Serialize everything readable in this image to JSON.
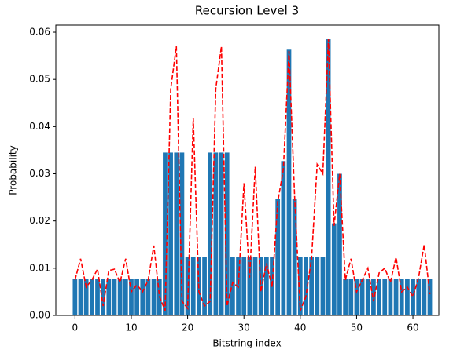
{
  "chart_data": {
    "type": "bar",
    "title": "Recursion Level 3",
    "xlabel": "Bitstring index",
    "ylabel": "Probability",
    "x": [
      0,
      1,
      2,
      3,
      4,
      5,
      6,
      7,
      8,
      9,
      10,
      11,
      12,
      13,
      14,
      15,
      16,
      17,
      18,
      19,
      20,
      21,
      22,
      23,
      24,
      25,
      26,
      27,
      28,
      29,
      30,
      31,
      32,
      33,
      34,
      35,
      36,
      37,
      38,
      39,
      40,
      41,
      42,
      43,
      44,
      45,
      46,
      47,
      48,
      49,
      50,
      51,
      52,
      53,
      54,
      55,
      56,
      57,
      58,
      59,
      60,
      61,
      62,
      63
    ],
    "series": [
      {
        "type": "bar",
        "color": "#1f77b4",
        "values": [
          0.0078,
          0.0078,
          0.0078,
          0.0078,
          0.0078,
          0.0078,
          0.0078,
          0.0078,
          0.0078,
          0.0078,
          0.0078,
          0.0078,
          0.0078,
          0.0078,
          0.0078,
          0.0078,
          0.0345,
          0.0345,
          0.0345,
          0.0345,
          0.0123,
          0.0123,
          0.0123,
          0.0123,
          0.0345,
          0.0345,
          0.0345,
          0.0345,
          0.0123,
          0.0123,
          0.0123,
          0.0123,
          0.0123,
          0.0123,
          0.0123,
          0.0123,
          0.0247,
          0.0327,
          0.0563,
          0.0247,
          0.0123,
          0.0123,
          0.0123,
          0.0123,
          0.0123,
          0.0585,
          0.0195,
          0.03,
          0.0078,
          0.0078,
          0.0078,
          0.0078,
          0.0078,
          0.0078,
          0.0078,
          0.0078,
          0.0078,
          0.0078,
          0.0078,
          0.0078,
          0.0078,
          0.0078,
          0.0078,
          0.0078
        ]
      },
      {
        "type": "line",
        "color": "#ff0000",
        "dashed": true,
        "values": [
          0.0075,
          0.012,
          0.006,
          0.0075,
          0.0098,
          0.002,
          0.0095,
          0.0098,
          0.007,
          0.012,
          0.005,
          0.0065,
          0.005,
          0.0075,
          0.0148,
          0.004,
          0.001,
          0.048,
          0.057,
          0.003,
          0.0015,
          0.0418,
          0.005,
          0.002,
          0.003,
          0.048,
          0.057,
          0.002,
          0.007,
          0.006,
          0.028,
          0.008,
          0.0315,
          0.005,
          0.011,
          0.006,
          0.024,
          0.031,
          0.056,
          0.025,
          0.001,
          0.004,
          0.012,
          0.032,
          0.03,
          0.0585,
          0.019,
          0.03,
          0.0075,
          0.012,
          0.005,
          0.0075,
          0.01,
          0.003,
          0.009,
          0.01,
          0.007,
          0.0123,
          0.005,
          0.006,
          0.004,
          0.008,
          0.015,
          0.0045
        ]
      }
    ],
    "xlim": [
      -3.4,
      64.6
    ],
    "xticks": [
      0,
      10,
      20,
      30,
      40,
      50,
      60
    ],
    "ylim": [
      0,
      0.0615
    ],
    "yticks": [
      {
        "value": 0,
        "label": "0.00"
      },
      0.01,
      0.02,
      0.03,
      0.04,
      0.05,
      0.06
    ]
  }
}
